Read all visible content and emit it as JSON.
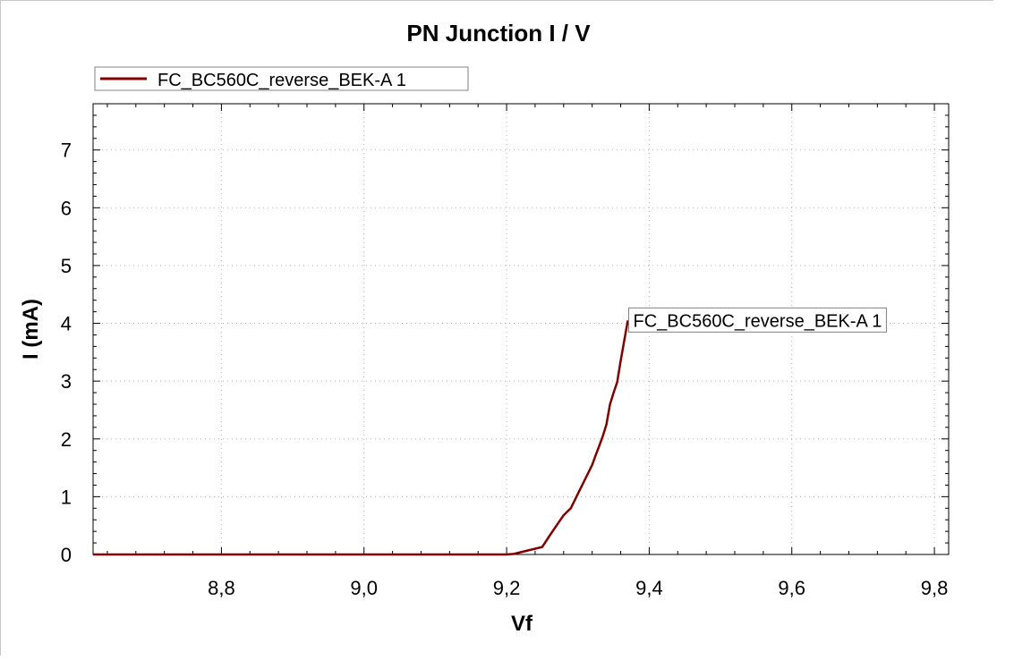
{
  "chart_data": {
    "type": "line",
    "title": "PN Junction I / V",
    "xlabel": "Vf",
    "ylabel": "I (mA)",
    "xlim": [
      8.62,
      9.82
    ],
    "ylim": [
      0,
      7.8
    ],
    "x_ticks": [
      8.8,
      9.0,
      9.2,
      9.4,
      9.6,
      9.8
    ],
    "x_tick_labels": [
      "8,8",
      "9,0",
      "9,2",
      "9,4",
      "9,6",
      "9,8"
    ],
    "y_ticks": [
      0,
      1,
      2,
      3,
      4,
      5,
      6,
      7
    ],
    "y_tick_labels": [
      "0",
      "1",
      "2",
      "3",
      "4",
      "5",
      "6",
      "7"
    ],
    "grid": true,
    "legend_position": "top-left",
    "series": [
      {
        "name": "FC_BC560C_reverse_BEK-A 1",
        "color": "#800000",
        "x": [
          8.62,
          8.8,
          9.0,
          9.1,
          9.15,
          9.2,
          9.21,
          9.25,
          9.26,
          9.27,
          9.28,
          9.29,
          9.3,
          9.31,
          9.32,
          9.325,
          9.33,
          9.335,
          9.34,
          9.345,
          9.35,
          9.355,
          9.36,
          9.365,
          9.37
        ],
        "y": [
          0,
          0,
          0,
          0,
          0,
          0,
          0.01,
          0.13,
          0.32,
          0.5,
          0.68,
          0.8,
          1.05,
          1.3,
          1.55,
          1.72,
          1.88,
          2.05,
          2.25,
          2.6,
          2.8,
          2.98,
          3.35,
          3.7,
          4.05
        ]
      }
    ],
    "annotations": [
      {
        "text": "FC_BC560C_reverse_BEK-A 1",
        "x": 9.37,
        "y": 4.05
      }
    ]
  }
}
